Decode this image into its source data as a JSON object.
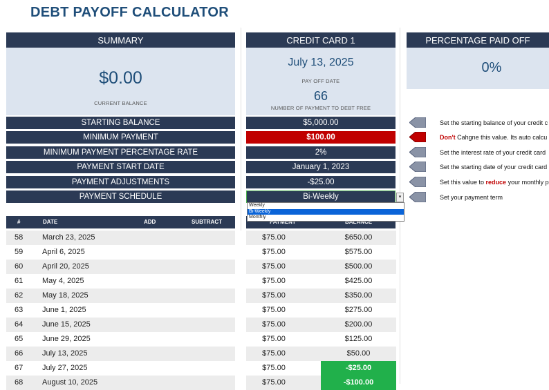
{
  "title": "DEBT PAYOFF CALCULATOR",
  "summary": {
    "header": "SUMMARY",
    "balance": "$0.00",
    "balance_caption": "CURRENT BALANCE"
  },
  "card": {
    "header": "CREDIT CARD 1",
    "payoff_date": "July 13, 2025",
    "payoff_caption": "PAY OFF DATE",
    "num_payments": "66",
    "num_caption": "NUMBER OF PAYMENT TO DEBT FREE"
  },
  "percent": {
    "header": "PERCENTAGE PAID OFF",
    "value": "0%"
  },
  "fields": [
    {
      "label": "STARTING BALANCE",
      "value": "$5,000.00"
    },
    {
      "label": "MINIMUM PAYMENT",
      "value": "$100.00"
    },
    {
      "label": "MINIMUM PAYMENT PERCENTAGE RATE",
      "value": "2%"
    },
    {
      "label": "PAYMENT START DATE",
      "value": "January 1, 2023"
    },
    {
      "label": "PAYMENT ADJUSTMENTS",
      "value": "-$25.00"
    },
    {
      "label": "PAYMENT SCHEDULE",
      "value": "Bi-Weekly"
    }
  ],
  "notes": [
    {
      "pre": "",
      "bold": "",
      "post": "Set the starting balance of your credit c"
    },
    {
      "pre": "",
      "bold": "Don't",
      "post": " Cahgne this value. Its auto calcu"
    },
    {
      "pre": "",
      "bold": "",
      "post": "Set the interest rate of your credit card"
    },
    {
      "pre": "",
      "bold": "",
      "post": "Set the starting date of your credit card"
    },
    {
      "pre": "Set this value to ",
      "bold": "reduce",
      "post": " your monthly p"
    },
    {
      "pre": "",
      "bold": "",
      "post": "Set your payment term"
    }
  ],
  "schedule_options": [
    "Weekly",
    "Bi-Weekly",
    "Monthly"
  ],
  "table": {
    "headers": {
      "num": "#",
      "date": "DATE",
      "add": "ADD",
      "subtract": "SUBTRACT",
      "payment": "PAYMENT",
      "balance": "BALANCE"
    },
    "rows": [
      {
        "num": "58",
        "date": "March 23, 2025",
        "payment": "$75.00",
        "balance": "$650.00"
      },
      {
        "num": "59",
        "date": "April 6, 2025",
        "payment": "$75.00",
        "balance": "$575.00"
      },
      {
        "num": "60",
        "date": "April 20, 2025",
        "payment": "$75.00",
        "balance": "$500.00"
      },
      {
        "num": "61",
        "date": "May 4, 2025",
        "payment": "$75.00",
        "balance": "$425.00"
      },
      {
        "num": "62",
        "date": "May 18, 2025",
        "payment": "$75.00",
        "balance": "$350.00"
      },
      {
        "num": "63",
        "date": "June 1, 2025",
        "payment": "$75.00",
        "balance": "$275.00"
      },
      {
        "num": "64",
        "date": "June 15, 2025",
        "payment": "$75.00",
        "balance": "$200.00"
      },
      {
        "num": "65",
        "date": "June 29, 2025",
        "payment": "$75.00",
        "balance": "$125.00"
      },
      {
        "num": "66",
        "date": "July 13, 2025",
        "payment": "$75.00",
        "balance": "$50.00"
      },
      {
        "num": "67",
        "date": "July 27, 2025",
        "payment": "$75.00",
        "balance": "-$25.00"
      },
      {
        "num": "68",
        "date": "August 10, 2025",
        "payment": "$75.00",
        "balance": "-$100.00"
      }
    ]
  },
  "colors": {
    "navy": "#2b3a55",
    "panel": "#dce4ef",
    "title": "#1f4e79",
    "alert": "#c00000",
    "negative": "#21b04b"
  }
}
